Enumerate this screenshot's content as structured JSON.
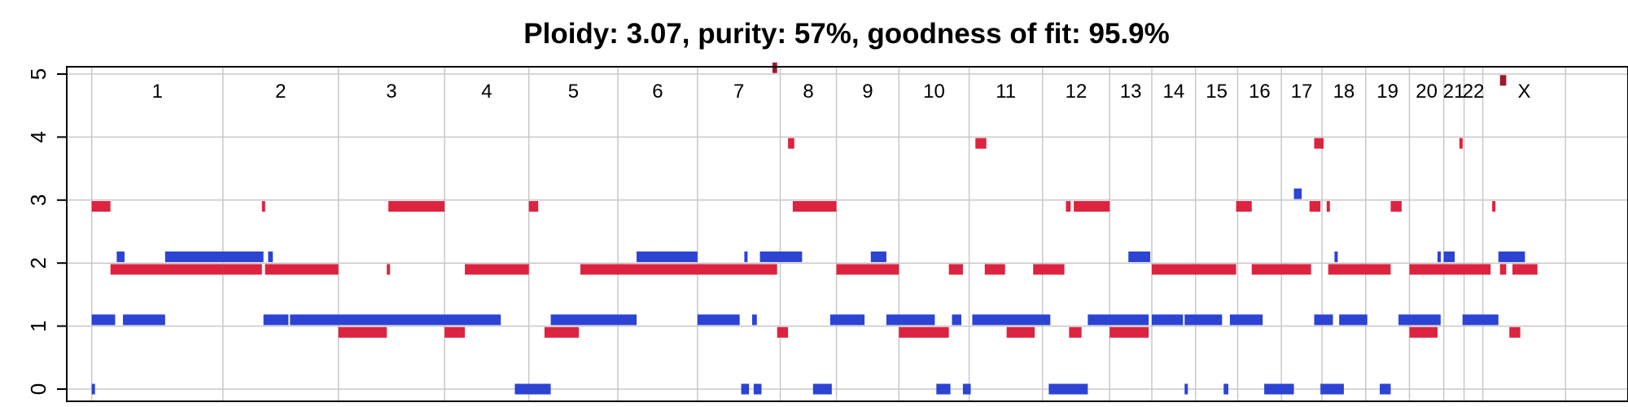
{
  "chart_data": {
    "type": "segment-plot",
    "title": "Ploidy: 3.07, purity: 57%, goodness of fit: 95.9%",
    "x_range": [
      0,
      100
    ],
    "ylim": [
      0,
      5
    ],
    "y_ticks": [
      0,
      1,
      2,
      3,
      4,
      5
    ],
    "grid": true,
    "colors": {
      "major": "#dc2340",
      "minor": "#2c43d3",
      "grid": "#c8c8c8",
      "outlier": "#a01830"
    },
    "chromosomes": [
      {
        "label": "1",
        "start": 1.6,
        "end": 10.0
      },
      {
        "label": "2",
        "start": 10.0,
        "end": 17.4
      },
      {
        "label": "3",
        "start": 17.4,
        "end": 24.2
      },
      {
        "label": "4",
        "start": 24.2,
        "end": 29.6
      },
      {
        "label": "5",
        "start": 29.6,
        "end": 35.3
      },
      {
        "label": "6",
        "start": 35.3,
        "end": 40.4
      },
      {
        "label": "7",
        "start": 40.4,
        "end": 45.7
      },
      {
        "label": "8",
        "start": 45.7,
        "end": 49.3
      },
      {
        "label": "9",
        "start": 49.3,
        "end": 53.3
      },
      {
        "label": "10",
        "start": 53.3,
        "end": 57.8
      },
      {
        "label": "11",
        "start": 57.8,
        "end": 62.5
      },
      {
        "label": "12",
        "start": 62.5,
        "end": 66.8
      },
      {
        "label": "13",
        "start": 66.8,
        "end": 69.5
      },
      {
        "label": "14",
        "start": 69.5,
        "end": 72.3
      },
      {
        "label": "15",
        "start": 72.3,
        "end": 75.0
      },
      {
        "label": "16",
        "start": 75.0,
        "end": 77.8
      },
      {
        "label": "17",
        "start": 77.8,
        "end": 80.4
      },
      {
        "label": "18",
        "start": 80.4,
        "end": 83.2
      },
      {
        "label": "19",
        "start": 83.2,
        "end": 86.0
      },
      {
        "label": "20",
        "start": 86.0,
        "end": 88.2
      },
      {
        "label": "21",
        "start": 88.2,
        "end": 89.5
      },
      {
        "label": "22",
        "start": 89.5,
        "end": 90.7
      },
      {
        "label": "X",
        "start": 90.7,
        "end": 96.0
      }
    ],
    "series": [
      {
        "role": "major",
        "segments": [
          [
            1.6,
            2.8,
            2.9
          ],
          [
            2.8,
            10.0,
            1.9
          ],
          [
            10.0,
            12.5,
            1.9
          ],
          [
            12.5,
            12.7,
            2.9
          ],
          [
            12.7,
            17.4,
            1.9
          ],
          [
            17.4,
            20.5,
            0.9
          ],
          [
            20.5,
            20.6,
            1.9
          ],
          [
            20.6,
            24.2,
            2.9
          ],
          [
            24.2,
            25.5,
            0.9
          ],
          [
            25.5,
            29.6,
            1.9
          ],
          [
            29.6,
            30.2,
            2.9
          ],
          [
            30.6,
            32.8,
            0.9
          ],
          [
            32.9,
            45.5,
            1.9
          ],
          [
            45.5,
            46.2,
            0.9
          ],
          [
            46.2,
            46.6,
            3.9
          ],
          [
            46.5,
            49.3,
            2.9
          ],
          [
            49.3,
            53.3,
            1.9
          ],
          [
            53.3,
            56.5,
            0.9
          ],
          [
            56.5,
            57.4,
            1.9
          ],
          [
            58.2,
            58.9,
            3.9
          ],
          [
            58.8,
            60.1,
            1.9
          ],
          [
            60.2,
            62.0,
            0.9
          ],
          [
            61.9,
            63.9,
            1.9
          ],
          [
            64.0,
            64.3,
            2.9
          ],
          [
            64.2,
            65.0,
            0.9
          ],
          [
            64.5,
            66.8,
            2.9
          ],
          [
            66.8,
            69.3,
            0.9
          ],
          [
            69.5,
            74.9,
            1.9
          ],
          [
            74.9,
            75.9,
            2.9
          ],
          [
            75.9,
            79.7,
            1.9
          ],
          [
            79.6,
            80.3,
            2.9
          ],
          [
            79.9,
            80.5,
            3.9
          ],
          [
            80.7,
            80.8,
            2.9
          ],
          [
            80.8,
            84.8,
            1.9
          ],
          [
            84.8,
            85.5,
            2.9
          ],
          [
            86.0,
            87.8,
            0.9
          ],
          [
            86.0,
            91.2,
            1.9
          ],
          [
            89.2,
            89.3,
            3.9
          ],
          [
            91.3,
            91.4,
            2.9
          ],
          [
            91.8,
            92.2,
            1.9
          ],
          [
            92.4,
            93.1,
            0.9
          ],
          [
            92.6,
            94.2,
            1.9
          ]
        ]
      },
      {
        "role": "minor",
        "segments": [
          [
            1.6,
            1.7,
            0.0
          ],
          [
            1.6,
            3.1,
            1.1
          ],
          [
            3.2,
            3.7,
            2.1
          ],
          [
            3.6,
            6.3,
            1.1
          ],
          [
            6.3,
            12.6,
            2.1
          ],
          [
            12.6,
            14.2,
            1.1
          ],
          [
            12.9,
            13.2,
            2.1
          ],
          [
            14.3,
            27.8,
            1.1
          ],
          [
            28.7,
            31.0,
            0.0
          ],
          [
            31.0,
            36.5,
            1.1
          ],
          [
            36.5,
            40.4,
            2.1
          ],
          [
            40.4,
            43.1,
            1.1
          ],
          [
            43.2,
            43.7,
            0.0
          ],
          [
            43.4,
            43.6,
            2.1
          ],
          [
            43.9,
            44.2,
            1.1
          ],
          [
            44.0,
            44.5,
            0.0
          ],
          [
            44.4,
            47.1,
            2.1
          ],
          [
            47.8,
            49.0,
            0.0
          ],
          [
            48.9,
            51.1,
            1.1
          ],
          [
            51.5,
            52.5,
            2.1
          ],
          [
            52.5,
            55.6,
            1.1
          ],
          [
            55.7,
            56.6,
            0.0
          ],
          [
            56.7,
            57.3,
            1.1
          ],
          [
            57.4,
            57.9,
            0.0
          ],
          [
            58.0,
            63.0,
            1.1
          ],
          [
            62.9,
            65.4,
            0.0
          ],
          [
            65.4,
            69.3,
            1.1
          ],
          [
            68.0,
            69.4,
            2.1
          ],
          [
            69.5,
            71.5,
            1.1
          ],
          [
            71.6,
            71.7,
            0.0
          ],
          [
            71.6,
            74.0,
            1.1
          ],
          [
            74.1,
            74.4,
            0.0
          ],
          [
            74.5,
            76.6,
            1.1
          ],
          [
            76.7,
            78.6,
            0.0
          ],
          [
            78.6,
            79.1,
            3.1
          ],
          [
            79.9,
            81.1,
            1.1
          ],
          [
            80.3,
            81.8,
            0.0
          ],
          [
            81.2,
            81.4,
            2.1
          ],
          [
            81.5,
            83.3,
            1.1
          ],
          [
            84.1,
            84.8,
            0.0
          ],
          [
            85.3,
            88.0,
            1.1
          ],
          [
            87.8,
            87.9,
            2.1
          ],
          [
            88.2,
            88.9,
            2.1
          ],
          [
            89.4,
            91.7,
            1.1
          ],
          [
            91.7,
            93.4,
            2.1
          ]
        ]
      },
      {
        "role": "outlier",
        "segments": [
          [
            45.2,
            45.5,
            5.1
          ],
          [
            91.8,
            92.2,
            4.9
          ]
        ]
      }
    ]
  }
}
